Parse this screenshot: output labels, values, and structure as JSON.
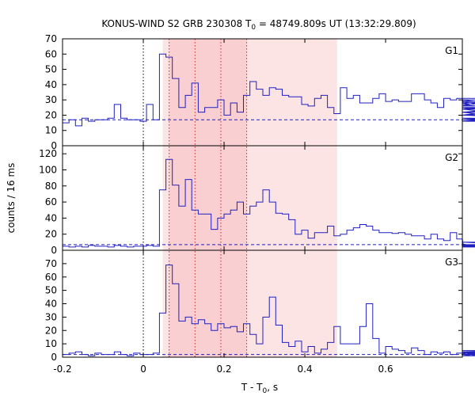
{
  "chart_data": {
    "type": "line",
    "title": {
      "prefix": "KONUS-WIND S2 GRB 230308 T",
      "sub": "0",
      "suffix": " = 48749.809s UT (13:32:29.809)"
    },
    "xlabel": {
      "prefix": "T - T",
      "sub": "0",
      "suffix": ", s"
    },
    "ylabel": "counts / 16 ms",
    "xlim": [
      -0.2,
      0.79
    ],
    "x_ticks": [
      "-0.2",
      "0",
      "0.2",
      "0.4",
      "0.6"
    ],
    "x_tick_values": [
      -0.2,
      0,
      0.2,
      0.4,
      0.6
    ],
    "grid": false,
    "shaded_intervals": [
      {
        "x0": 0.048,
        "x1": 0.48,
        "color": "#fde4e4"
      },
      {
        "x0": 0.064,
        "x1": 0.256,
        "color": "#f9cfd1"
      }
    ],
    "dotted_lines_x": [
      0,
      0.064,
      0.128,
      0.192,
      0.256
    ],
    "panels": [
      {
        "name": "G1",
        "ylim": [
          0,
          70
        ],
        "y_ticks": [
          "0",
          "10",
          "20",
          "30",
          "40",
          "50",
          "60",
          "70"
        ],
        "background_level": 17,
        "x_start": -0.2,
        "bin_width": 0.016,
        "values": [
          15,
          17,
          13,
          18,
          16,
          17,
          17,
          18,
          27,
          18,
          17,
          17,
          16,
          27,
          17,
          60,
          58,
          44,
          25,
          33,
          41,
          22,
          25,
          25,
          30,
          20,
          28,
          22,
          33,
          42,
          37,
          33,
          38,
          37,
          33,
          32,
          32,
          27,
          26,
          31,
          33,
          25,
          21,
          38,
          31,
          33,
          28,
          28,
          31,
          34,
          29,
          30,
          29,
          29,
          34,
          34,
          30,
          28,
          25,
          31,
          30,
          31,
          28,
          27,
          26,
          26,
          29,
          25,
          22,
          24,
          20,
          22,
          17,
          20,
          18,
          16,
          20,
          28,
          30,
          20,
          17,
          24,
          31
        ]
      },
      {
        "name": "G2",
        "ylim": [
          0,
          130
        ],
        "y_ticks": [
          "0",
          "20",
          "40",
          "60",
          "80",
          "100",
          "120"
        ],
        "background_level": 7,
        "x_start": -0.2,
        "bin_width": 0.016,
        "values": [
          5,
          4,
          5,
          4,
          6,
          5,
          5,
          4,
          6,
          5,
          4,
          5,
          5,
          6,
          5,
          75,
          113,
          81,
          55,
          88,
          50,
          45,
          45,
          26,
          40,
          45,
          50,
          60,
          45,
          55,
          60,
          75,
          60,
          46,
          45,
          38,
          20,
          25,
          15,
          22,
          22,
          30,
          18,
          20,
          25,
          28,
          32,
          30,
          25,
          22,
          22,
          21,
          22,
          20,
          18,
          18,
          14,
          20,
          14,
          12,
          22,
          14,
          8,
          6,
          6,
          5,
          4,
          5,
          6,
          5,
          10,
          7,
          6,
          5,
          6,
          7,
          5,
          6,
          10,
          5,
          4,
          5,
          6
        ]
      },
      {
        "name": "G3",
        "ylim": [
          0,
          80
        ],
        "y_ticks": [
          "0",
          "10",
          "20",
          "30",
          "40",
          "50",
          "60",
          "70"
        ],
        "background_level": 2,
        "x_start": -0.2,
        "bin_width": 0.016,
        "values": [
          2,
          3,
          4,
          2,
          1,
          3,
          2,
          2,
          4,
          2,
          1,
          3,
          2,
          2,
          3,
          33,
          69,
          55,
          27,
          30,
          25,
          28,
          25,
          20,
          25,
          22,
          23,
          19,
          25,
          17,
          10,
          30,
          45,
          24,
          11,
          8,
          12,
          4,
          8,
          3,
          6,
          11,
          23,
          10,
          10,
          10,
          23,
          40,
          14,
          3,
          8,
          6,
          5,
          3,
          7,
          5,
          2,
          4,
          3,
          4,
          2,
          3,
          2,
          4,
          1,
          3,
          2,
          3,
          4,
          2,
          3,
          2,
          3,
          4,
          1,
          2,
          3,
          2,
          3,
          5,
          2,
          3,
          4
        ]
      }
    ],
    "colors": {
      "series": "#2020c0",
      "background_line": "#2020c0",
      "dotted_lines": "#c8282d",
      "axis": "#000000"
    }
  }
}
